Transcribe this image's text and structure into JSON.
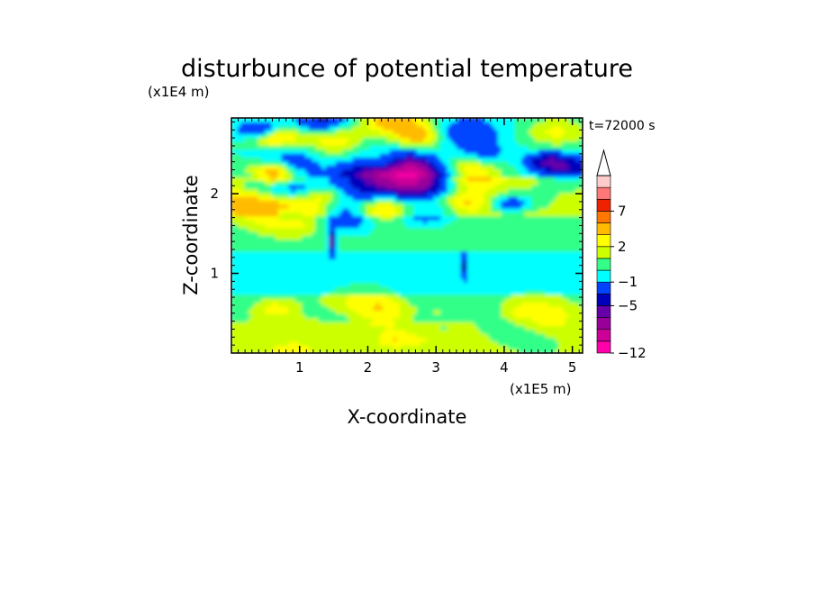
{
  "chart_data": {
    "type": "heatmap",
    "title": "disturbunce of potential temperature",
    "time_label": "t=72000 s",
    "xlabel": "X-coordinate",
    "ylabel": "Z-coordinate",
    "x_scale_label": "(x1E5 m)",
    "y_scale_label": "(x1E4 m)",
    "xlim": [
      0,
      5.15
    ],
    "ylim": [
      0,
      2.95
    ],
    "x_ticks": [
      1,
      2,
      3,
      4,
      5
    ],
    "x_tick_labels": [
      "1",
      "2",
      "3",
      "4",
      "5"
    ],
    "y_ticks": [
      1,
      2
    ],
    "y_tick_labels": [
      "1",
      "2"
    ],
    "grid": false,
    "colorbar": {
      "position": "right",
      "colors": [
        "#ff00aa",
        "#cc0099",
        "#990099",
        "#6600aa",
        "#0000bb",
        "#0044ff",
        "#00ffff",
        "#33ff88",
        "#ccff00",
        "#ffff00",
        "#ffbb00",
        "#ff7700",
        "#ee2200",
        "#ff7777",
        "#ffcccc"
      ],
      "labels": [
        "-12",
        "-5",
        "-1",
        "2",
        "7"
      ],
      "extend": "max",
      "levels": [
        -12,
        -10,
        -8,
        -6,
        -5,
        -3,
        -1,
        0,
        1,
        2,
        3,
        5,
        7,
        9,
        11
      ]
    },
    "field_description_bands": [
      {
        "z_range": [
          0,
          0.4
        ],
        "value": 1
      },
      {
        "z_range": [
          0.4,
          0.75
        ],
        "value": 0.5
      },
      {
        "z_range": [
          0.75,
          1.3
        ],
        "value": -0.5
      },
      {
        "z_range": [
          1.3,
          1.7
        ],
        "value": 0.5
      },
      {
        "z_range": [
          1.7,
          2.2
        ],
        "value": 1.5
      },
      {
        "z_range": [
          2.2,
          2.95
        ],
        "value": 0
      }
    ]
  }
}
